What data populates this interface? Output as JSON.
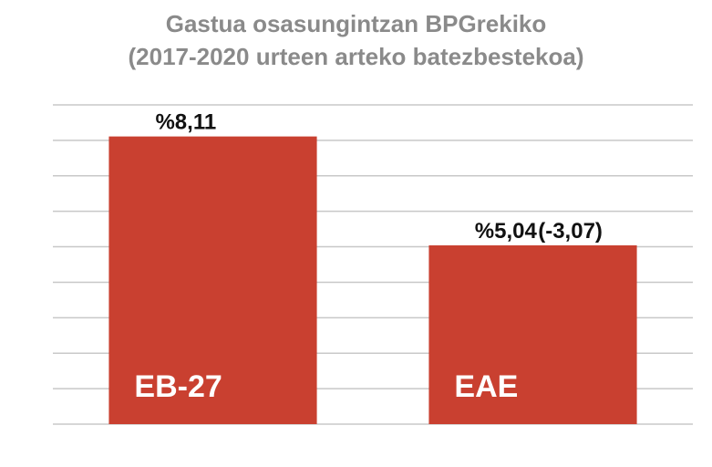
{
  "chart_data": {
    "type": "bar",
    "title_lines": [
      "Gastua osasungintzan BPGrekiko",
      "(2017-2020 urteen arteko batezbestekoa)"
    ],
    "categories": [
      "EB-27",
      "EAE"
    ],
    "values": [
      8.11,
      5.04
    ],
    "data_labels": [
      "%8,11",
      "%5,04"
    ],
    "annotations": [
      {
        "category": "EAE",
        "text": "(-3,07)"
      }
    ],
    "xlabel": "",
    "ylabel": "",
    "ylim": [
      0,
      9
    ],
    "grid": true,
    "legend": "none",
    "bar_color": "#c94030",
    "grid_color": "#c8c8c8"
  }
}
